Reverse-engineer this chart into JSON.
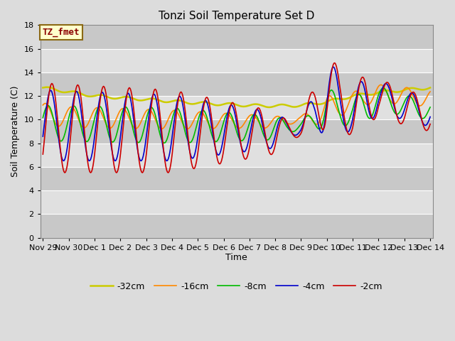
{
  "title": "Tonzi Soil Temperature Set D",
  "xlabel": "Time",
  "ylabel": "Soil Temperature (C)",
  "ylim": [
    0,
    18
  ],
  "yticks": [
    0,
    2,
    4,
    6,
    8,
    10,
    12,
    14,
    16,
    18
  ],
  "annotation_text": "TZ_fmet",
  "annotation_color": "#8B0000",
  "annotation_bg": "#FFFFCC",
  "annotation_border": "#8B6914",
  "bg_color": "#DCDCDC",
  "grid_color": "white",
  "series": {
    "-2cm": {
      "color": "#CC0000",
      "linewidth": 1.2
    },
    "-4cm": {
      "color": "#0000CC",
      "linewidth": 1.2
    },
    "-8cm": {
      "color": "#00BB00",
      "linewidth": 1.2
    },
    "-16cm": {
      "color": "#FF8800",
      "linewidth": 1.2
    },
    "-32cm": {
      "color": "#CCCC00",
      "linewidth": 1.8
    }
  },
  "xtick_labels": [
    "Nov 29",
    "Nov 30",
    "Dec 1",
    "Dec 2",
    "Dec 3",
    "Dec 4",
    "Dec 5",
    "Dec 6",
    "Dec 7",
    "Dec 8",
    "Dec 9",
    "Dec 10",
    "Dec 11",
    "Dec 12",
    "Dec 13",
    "Dec 14"
  ]
}
